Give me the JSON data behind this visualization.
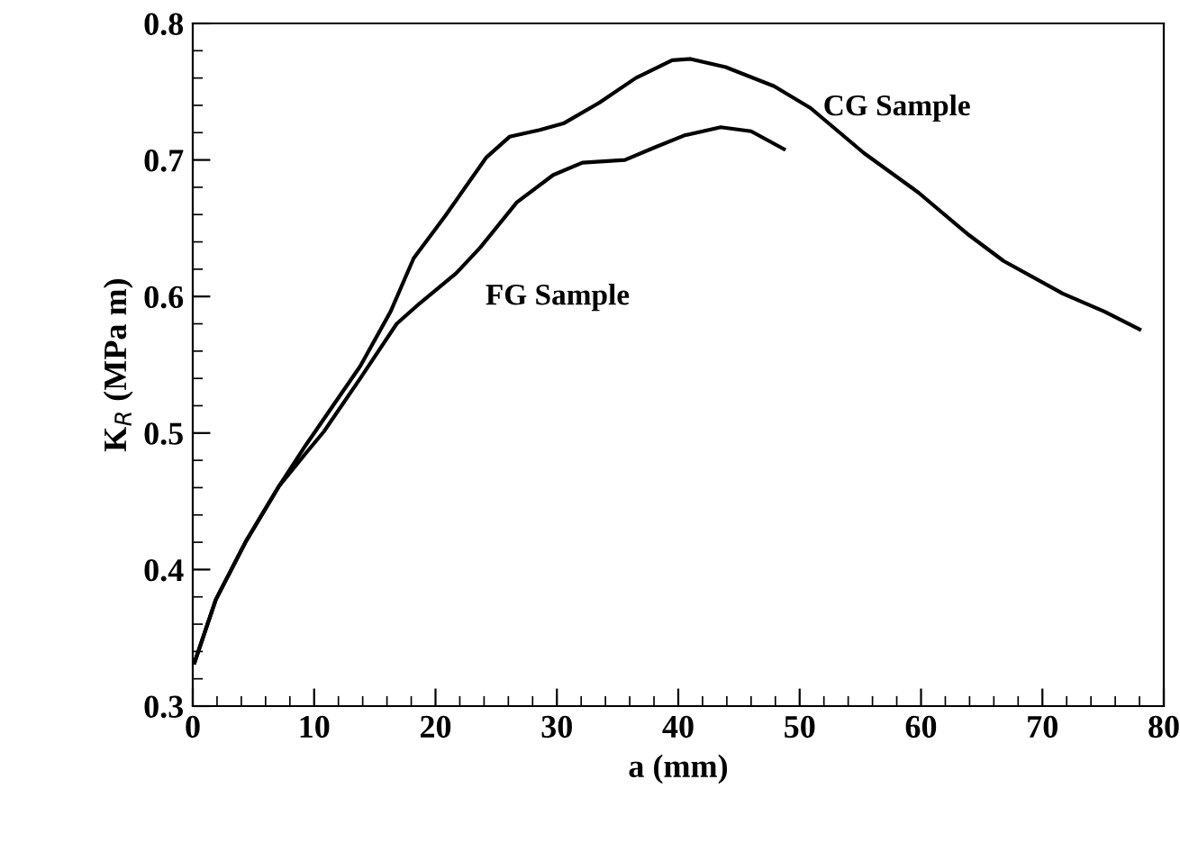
{
  "chart_data": {
    "type": "line",
    "xlabel": "a (mm)",
    "ylabel": "K$_{R}$ (MPa m)",
    "xlim": [
      0,
      80
    ],
    "ylim": [
      0.3,
      0.8
    ],
    "xticks": [
      0,
      10,
      20,
      30,
      40,
      50,
      60,
      70,
      80
    ],
    "yticks": [
      0.3,
      0.4,
      0.5,
      0.6,
      0.7,
      0.8
    ],
    "grid": false,
    "legend": false,
    "marker": "none",
    "line_style": "solid",
    "series": [
      {
        "name": "CG Sample",
        "color": "#000000",
        "x": [
          0.15,
          1.9,
          4.4,
          7.1,
          9.3,
          13.8,
          16.3,
          18.2,
          20.8,
          24.2,
          26.1,
          28.6,
          30.6,
          33.5,
          36.5,
          39.5,
          41,
          43.9,
          47.9,
          50.9,
          55.3,
          59.8,
          63.8,
          66.8,
          71.7,
          75.1,
          78
        ],
        "values": [
          0.332,
          0.378,
          0.421,
          0.461,
          0.491,
          0.549,
          0.589,
          0.628,
          0.659,
          0.702,
          0.717,
          0.722,
          0.727,
          0.742,
          0.76,
          0.773,
          0.774,
          0.768,
          0.754,
          0.738,
          0.705,
          0.676,
          0.646,
          0.626,
          0.602,
          0.589,
          0.576
        ]
      },
      {
        "name": "FG Sample",
        "color": "#000000",
        "x": [
          0.15,
          1.9,
          4.4,
          7.1,
          9.3,
          10.8,
          13.8,
          16.8,
          18.7,
          21.7,
          23.7,
          26.7,
          29.7,
          32.1,
          35.6,
          38,
          40.5,
          43.5,
          46,
          48.7
        ],
        "values": [
          0.332,
          0.378,
          0.421,
          0.461,
          0.485,
          0.501,
          0.54,
          0.58,
          0.595,
          0.617,
          0.636,
          0.669,
          0.689,
          0.698,
          0.7,
          0.709,
          0.718,
          0.724,
          0.721,
          0.708
        ]
      }
    ]
  }
}
